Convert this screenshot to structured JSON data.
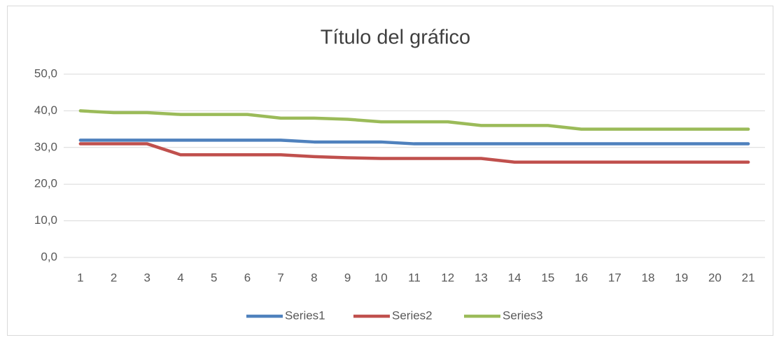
{
  "chart_data": {
    "type": "line",
    "title": "Título del gráfico",
    "categories": [
      1,
      2,
      3,
      4,
      5,
      6,
      7,
      8,
      9,
      10,
      11,
      12,
      13,
      14,
      15,
      16,
      17,
      18,
      19,
      20,
      21
    ],
    "series": [
      {
        "name": "Series1",
        "color": "#4f81bd",
        "values": [
          32,
          32,
          32,
          32,
          32,
          32,
          32,
          31.5,
          31.5,
          31.5,
          31,
          31,
          31,
          31,
          31,
          31,
          31,
          31,
          31,
          31,
          31
        ]
      },
      {
        "name": "Series2",
        "color": "#c0504d",
        "values": [
          31,
          31,
          31,
          28,
          28,
          28,
          28,
          27.5,
          27.2,
          27,
          27,
          27,
          27,
          26,
          26,
          26,
          26,
          26,
          26,
          26,
          26
        ]
      },
      {
        "name": "Series3",
        "color": "#9bbb59",
        "values": [
          40,
          39.5,
          39.5,
          39,
          39,
          39,
          38,
          38,
          37.7,
          37,
          37,
          37,
          36,
          36,
          36,
          35,
          35,
          35,
          35,
          35,
          35
        ]
      }
    ],
    "ylim": [
      0,
      50
    ],
    "yticks": [
      {
        "value": 0,
        "label": "0,0"
      },
      {
        "value": 10,
        "label": "10,0"
      },
      {
        "value": 20,
        "label": "20,0"
      },
      {
        "value": 30,
        "label": "30,0"
      },
      {
        "value": 40,
        "label": "40,0"
      },
      {
        "value": 50,
        "label": "50,0"
      }
    ],
    "grid": true,
    "legend": "bottom"
  }
}
